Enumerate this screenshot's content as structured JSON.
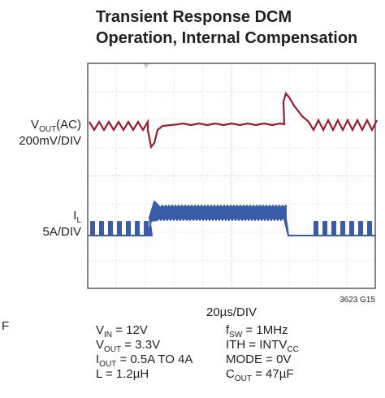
{
  "title_lines": [
    "Transient Response DCM",
    "Operation, Internal Compensation"
  ],
  "channel_labels": [
    {
      "main": "V",
      "sub": "OUT",
      "rest": "(AC)",
      "scale": "200mV/DIV"
    },
    {
      "main": "I",
      "sub": "L",
      "scale": "5A/DIV"
    }
  ],
  "figure_id": "3623 G15",
  "time_scale": "20µs/DIV",
  "edge_fragment": "F",
  "conditions_left": [
    {
      "main": "V",
      "sub": "IN",
      "rest": " = 12V"
    },
    {
      "main": "V",
      "sub": "OUT",
      "rest": " = 3.3V"
    },
    {
      "main": "I",
      "sub": "OUT",
      "rest": " = 0.5A TO 4A"
    },
    {
      "main": "L = 1.2µH"
    }
  ],
  "conditions_right": [
    {
      "main": "f",
      "sub": "SW",
      "rest": " = 1MHz"
    },
    {
      "main": "ITH = INTV",
      "sub": "CC"
    },
    {
      "main": "MODE = 0V"
    },
    {
      "main": "C",
      "sub": "OUT",
      "rest": " = 47µF"
    }
  ]
}
